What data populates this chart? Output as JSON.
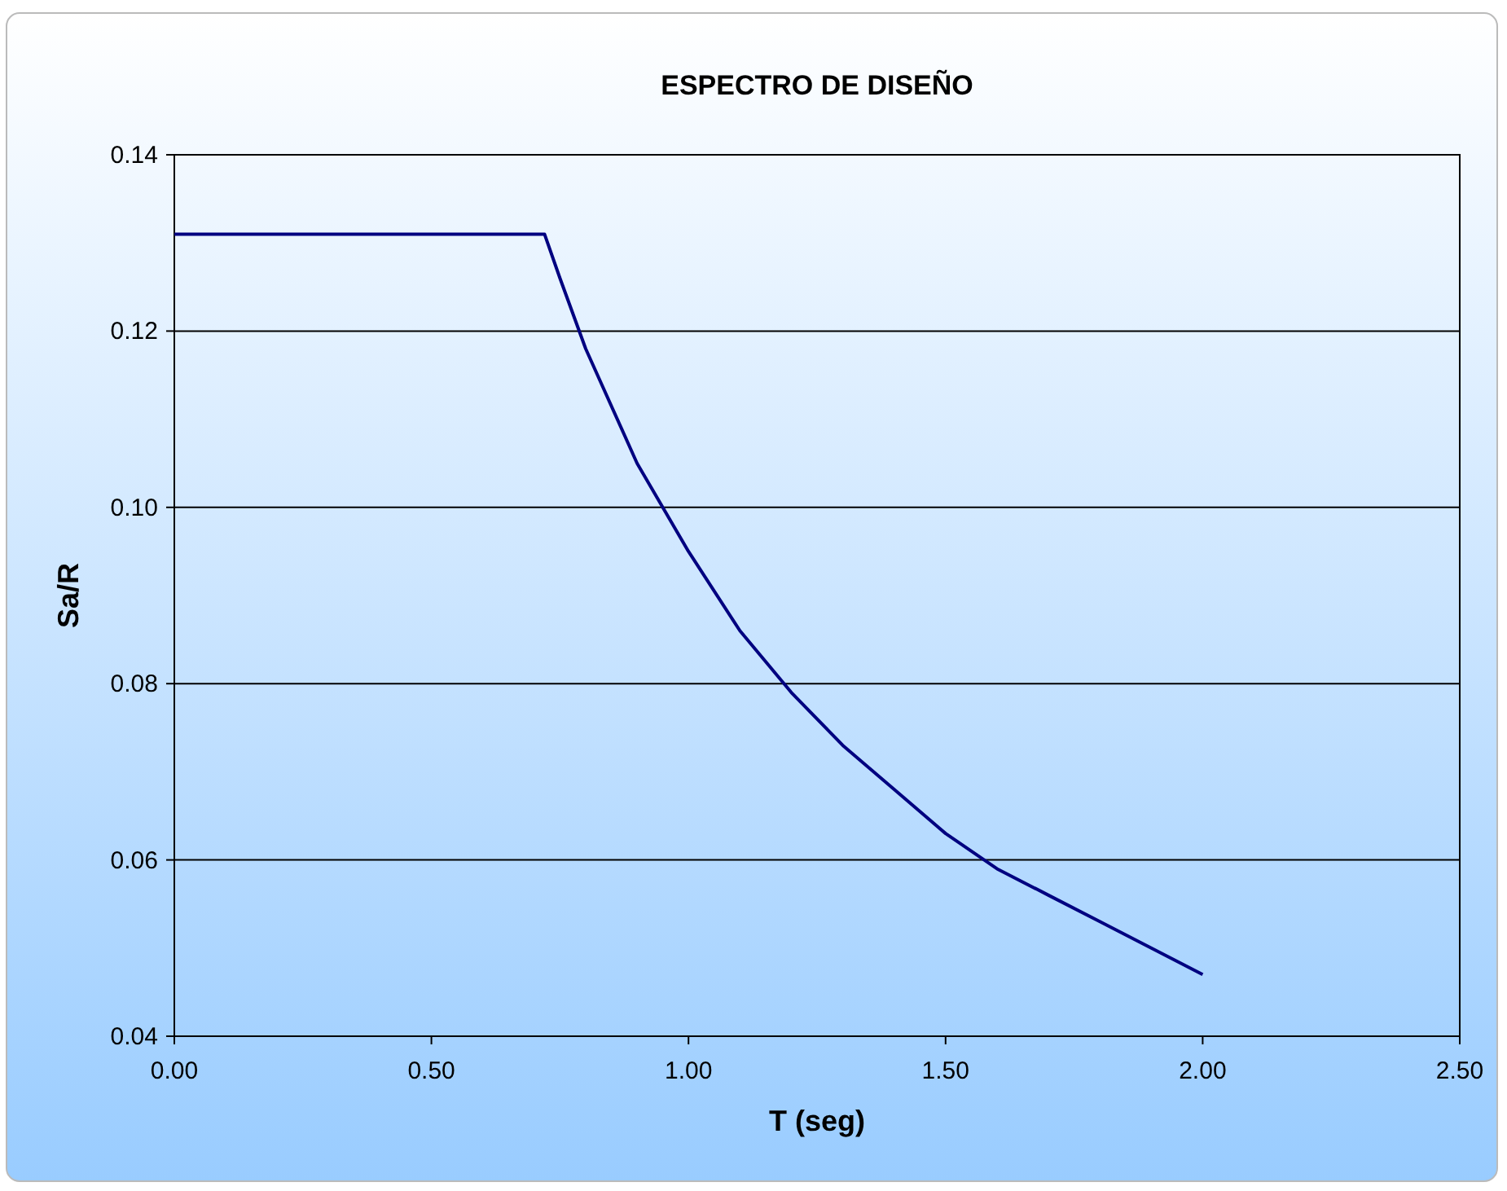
{
  "chart_data": {
    "type": "line",
    "title": "ESPECTRO DE DISEÑO",
    "xlabel": "T (seg)",
    "ylabel": "Sa/R",
    "x": [
      0,
      0.72,
      0.75,
      0.8,
      0.9,
      1.0,
      1.1,
      1.2,
      1.3,
      1.4,
      1.5,
      1.6,
      1.7,
      1.8,
      1.9,
      2.0
    ],
    "series": [
      {
        "color": "#000080",
        "values": [
          0.131,
          0.131,
          0.126,
          0.118,
          0.105,
          0.095,
          0.086,
          0.079,
          0.073,
          0.068,
          0.063,
          0.059,
          0.056,
          0.053,
          0.05,
          0.047
        ]
      }
    ],
    "xlim": [
      0,
      2.5
    ],
    "xticks": [
      {
        "value": 0,
        "label": "0.00"
      },
      {
        "value": 0.5,
        "label": "0.50"
      },
      {
        "value": 1,
        "label": "1.00"
      },
      {
        "value": 1.5,
        "label": "1.50"
      },
      {
        "value": 2,
        "label": "2.00"
      },
      {
        "value": 2.5,
        "label": "2.50"
      }
    ],
    "ylim": [
      0.04,
      0.14
    ],
    "yticks": [
      0.04,
      0.06,
      0.08,
      {
        "value": 0.1,
        "label": "0.10"
      },
      0.12,
      0.14
    ],
    "grid": "y",
    "marker": "none",
    "line_style": "solid"
  }
}
